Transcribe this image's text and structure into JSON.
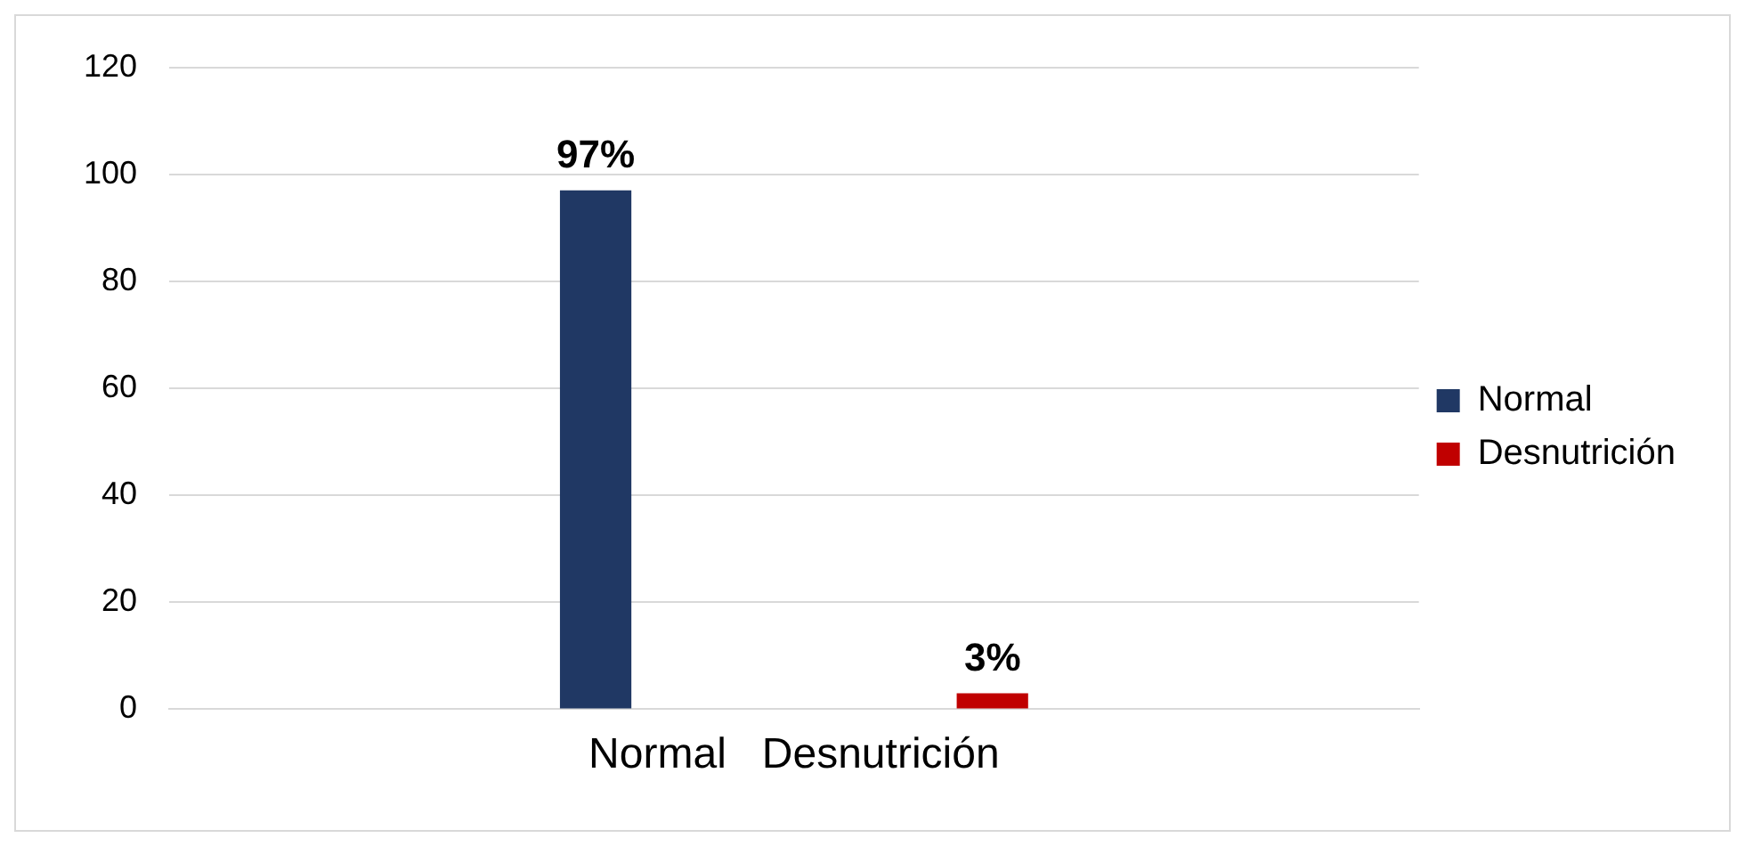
{
  "chart_data": {
    "type": "bar",
    "categories": [
      "Normal   Desnutrición"
    ],
    "series": [
      {
        "name": "Normal",
        "color": "#203864",
        "values": [
          97
        ],
        "value_labels": [
          "97%"
        ]
      },
      {
        "name": "Desnutrición",
        "color": "#c00000",
        "values": [
          3
        ],
        "value_labels": [
          "3%"
        ]
      }
    ],
    "ylim": [
      0,
      120
    ],
    "yticks": [
      0,
      20,
      40,
      60,
      80,
      100,
      120
    ],
    "grid": "y",
    "legend": "right"
  }
}
